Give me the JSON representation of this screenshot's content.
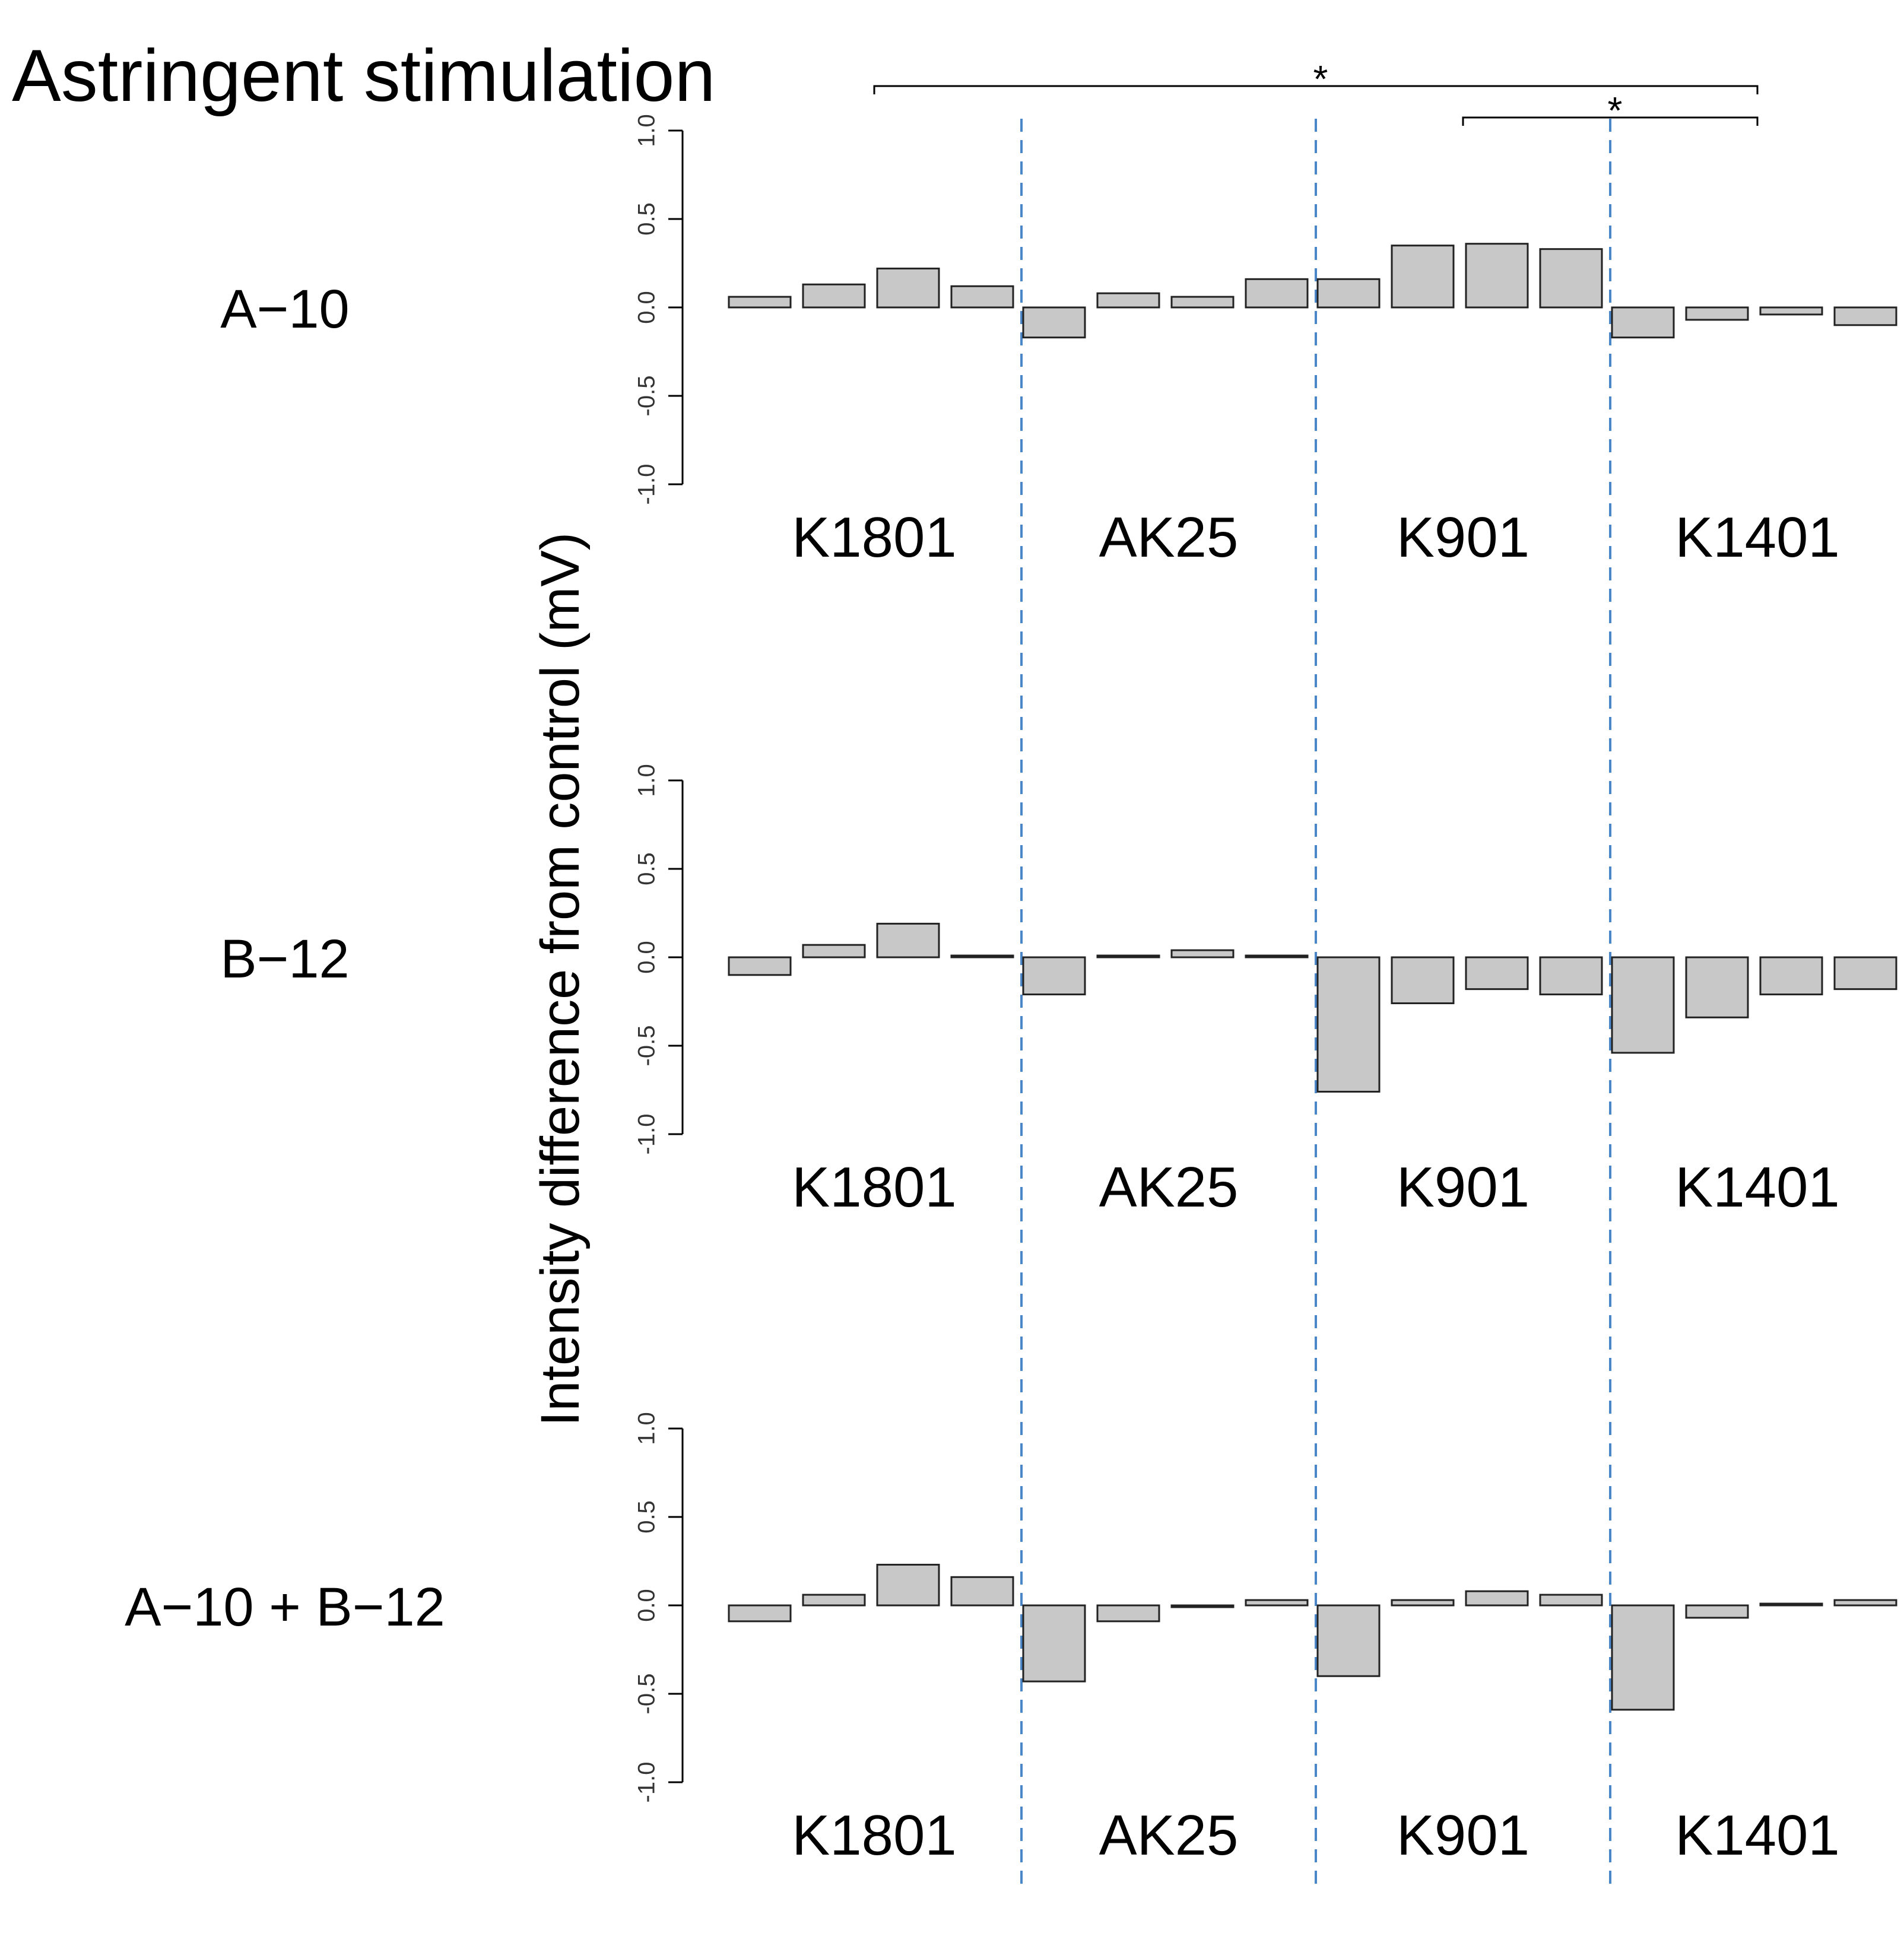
{
  "chart_data": {
    "type": "bar",
    "title": "Astringent stimulation",
    "ylabel": "Intensity difference from control (mV)",
    "ylim": [
      -1.0,
      1.0
    ],
    "yticks": [
      "1.0",
      "0.5",
      "0.0",
      "-0.5",
      "-1.0"
    ],
    "categories": [
      "K1801",
      "AK25",
      "K901",
      "K1401"
    ],
    "bars_per_category": 4,
    "bar_color": "#c8c8c8",
    "divider_color": "#4a86c8",
    "significance": [
      {
        "from": "K1801",
        "to": "K1401",
        "label": "*"
      },
      {
        "from": "K901",
        "to": "K1401",
        "label": "*"
      }
    ],
    "panels": [
      {
        "label": "A−10",
        "values": [
          [
            0.06,
            0.13,
            0.22,
            0.12
          ],
          [
            -0.17,
            0.08,
            0.06,
            0.16
          ],
          [
            0.16,
            0.35,
            0.36,
            0.33
          ],
          [
            -0.17,
            -0.07,
            -0.04,
            -0.1
          ]
        ]
      },
      {
        "label": "B−12",
        "values": [
          [
            -0.1,
            0.07,
            0.19,
            0.01
          ],
          [
            -0.21,
            0.01,
            0.04,
            0.01
          ],
          [
            -0.76,
            -0.26,
            -0.18,
            -0.21
          ],
          [
            -0.54,
            -0.34,
            -0.21,
            -0.18
          ]
        ]
      },
      {
        "label": "A−10 + B−12",
        "values": [
          [
            -0.09,
            0.06,
            0.23,
            0.16
          ],
          [
            -0.43,
            -0.09,
            0.0,
            0.03
          ],
          [
            -0.4,
            0.03,
            0.08,
            0.06
          ],
          [
            -0.59,
            -0.07,
            0.01,
            0.03
          ]
        ]
      }
    ]
  }
}
